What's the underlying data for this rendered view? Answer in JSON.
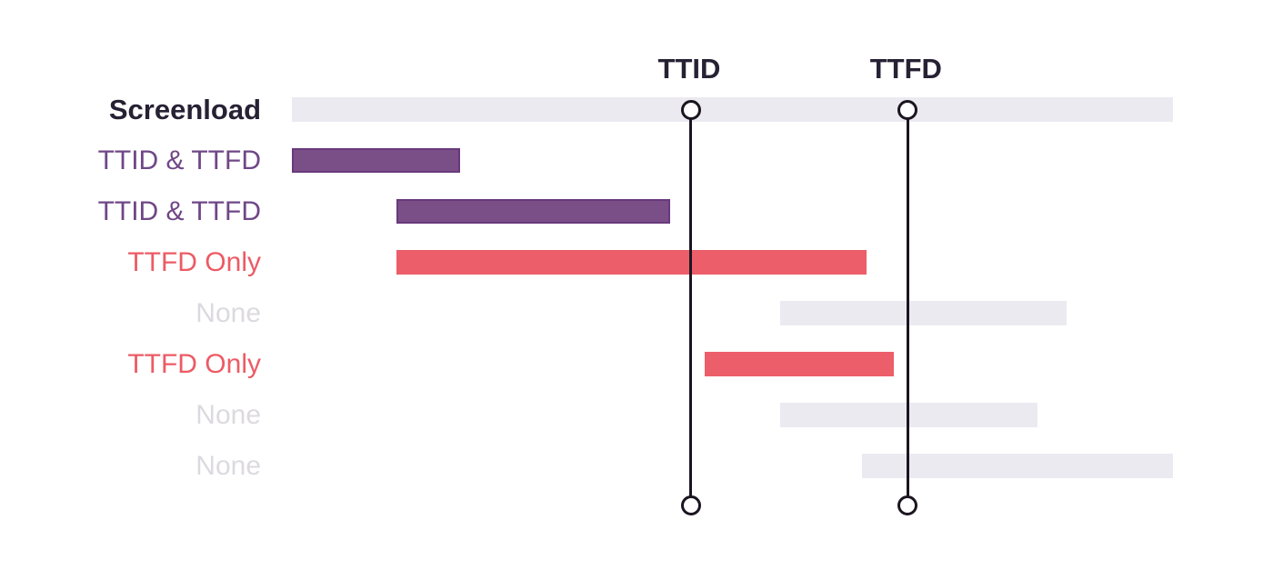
{
  "chart_data": {
    "type": "gantt",
    "title": "",
    "x_axis": {
      "visible": false,
      "unit": "percent_of_screenload_span",
      "min": 0,
      "max": 100
    },
    "grid": false,
    "legend": false,
    "rows": [
      {
        "label": "Screenload",
        "category": "screenload",
        "start_pct": 0,
        "end_pct": 100
      },
      {
        "label": "TTID & TTFD",
        "category": "ttid_and_ttfd",
        "start_pct": 0,
        "end_pct": 19.1
      },
      {
        "label": "TTID & TTFD",
        "category": "ttid_and_ttfd",
        "start_pct": 11.9,
        "end_pct": 42.9
      },
      {
        "label": "TTFD Only",
        "category": "ttfd_only",
        "start_pct": 11.9,
        "end_pct": 65.2
      },
      {
        "label": "None",
        "category": "none",
        "start_pct": 55.4,
        "end_pct": 87.9
      },
      {
        "label": "TTFD Only",
        "category": "ttfd_only",
        "start_pct": 46.9,
        "end_pct": 68.3
      },
      {
        "label": "None",
        "category": "none",
        "start_pct": 55.4,
        "end_pct": 84.6
      },
      {
        "label": "None",
        "category": "none",
        "start_pct": 64.7,
        "end_pct": 100
      }
    ],
    "markers": [
      {
        "label": "TTID",
        "x_pct": 45.2
      },
      {
        "label": "TTFD",
        "x_pct": 69.8
      }
    ]
  },
  "colors": {
    "background": "#ffffff",
    "bar_screenload": "#ECEAF1",
    "bar_ttid_and_ttfd": "#7A4F88",
    "bar_ttid_and_ttfd_border": "#69397B",
    "bar_ttfd_only": "#EC5E69",
    "bar_none": "#ECEAF1",
    "label_screenload": "#272134",
    "label_ttid_and_ttfd": "#6F4787",
    "label_ttfd_only": "#EC5B65",
    "label_none": "#DCD9E0",
    "marker_line": "#1B1521",
    "marker_circle_fill": "#FFFFFF",
    "marker_label": "#272134"
  }
}
